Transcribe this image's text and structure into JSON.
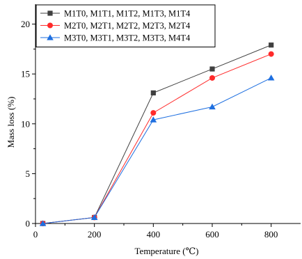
{
  "chart_data": {
    "type": "line",
    "xlabel": "Temperature (℃)",
    "ylabel": "Mass loss (%)",
    "xlim": [
      0,
      900
    ],
    "ylim": [
      0,
      22
    ],
    "xticks": [
      0,
      200,
      400,
      600,
      800
    ],
    "yticks": [
      0,
      5,
      10,
      15,
      20
    ],
    "grid": false,
    "legend_position": "top-left",
    "x": [
      25,
      200,
      400,
      600,
      800
    ],
    "series": [
      {
        "name": "M1T0, M1T1, M1T2, M1T3, M1T4",
        "values": [
          0,
          0.6,
          13.1,
          15.5,
          17.9
        ],
        "color": "#404040",
        "marker": "square"
      },
      {
        "name": "M2T0, M2T1, M2T2, M2T3, M2T4",
        "values": [
          0,
          0.6,
          11.1,
          14.6,
          17.0
        ],
        "color": "#ff2a2a",
        "marker": "circle"
      },
      {
        "name": "M3T0, M3T1, M3T2, M3T3, M4T4",
        "values": [
          0,
          0.6,
          10.4,
          11.7,
          14.6
        ],
        "color": "#1e6fe0",
        "marker": "triangle"
      }
    ]
  }
}
